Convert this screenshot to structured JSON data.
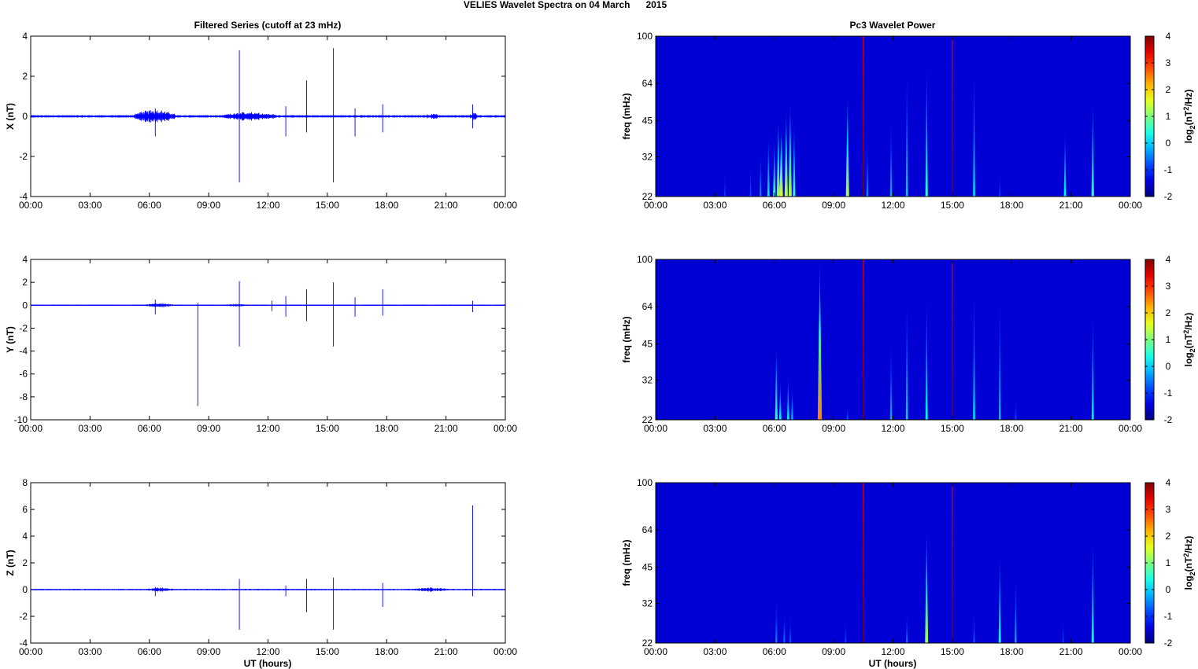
{
  "figure": {
    "title": "VELIES Wavelet Spectra on 04 March      2015",
    "left_title": "Filtered Series (cutoff at 23 mHz)",
    "right_title": "Pc3 Wavelet Power",
    "x_label": "UT (hours)"
  },
  "colors": {
    "trace": "#0000ff",
    "spectrogram_background": "#00008f"
  },
  "colorbar": {
    "label": "log2(nT2/Hz)",
    "label_parts": [
      "log",
      "2",
      "(nT",
      "2",
      "/Hz)"
    ],
    "range": [
      -2,
      4
    ],
    "ticks": [
      "4",
      "3",
      "2",
      "1",
      "0",
      "-1",
      "-2"
    ]
  },
  "chart_data": [
    {
      "type": "line",
      "component": "X",
      "ylabel": "X (nT)",
      "xlabel": "",
      "x_ticks": [
        "00:00",
        "03:00",
        "06:00",
        "09:00",
        "12:00",
        "15:00",
        "18:00",
        "21:00",
        "00:00"
      ],
      "xlim_hours": [
        0,
        24
      ],
      "ylim": [
        -4,
        4
      ],
      "y_ticks": [
        "4",
        "2",
        "0",
        "-2",
        "-4"
      ],
      "baseline_noise_nT": 0.06,
      "noise_bursts": [
        {
          "start_h": 5.2,
          "end_h": 7.3,
          "amp_nT": 0.45
        },
        {
          "start_h": 9.8,
          "end_h": 12.4,
          "amp_nT": 0.3
        },
        {
          "start_h": 19.7,
          "end_h": 21.0,
          "amp_nT": 0.15
        },
        {
          "start_h": 22.2,
          "end_h": 22.6,
          "amp_nT": 0.25
        }
      ],
      "spikes": [
        {
          "t_h": 6.3,
          "max": 0.4,
          "min": -1.0
        },
        {
          "t_h": 10.55,
          "max": 3.3,
          "min": -3.3
        },
        {
          "t_h": 12.9,
          "max": 0.5,
          "min": -1.0
        },
        {
          "t_h": 13.95,
          "max": 1.8,
          "min": -0.8
        },
        {
          "t_h": 15.3,
          "max": 3.4,
          "min": -3.3
        },
        {
          "t_h": 16.4,
          "max": 0.4,
          "min": -1.0
        },
        {
          "t_h": 17.8,
          "max": 0.6,
          "min": -0.8
        },
        {
          "t_h": 22.35,
          "max": 0.6,
          "min": -0.6
        }
      ]
    },
    {
      "type": "line",
      "component": "Y",
      "ylabel": "Y (nT)",
      "xlabel": "",
      "x_ticks": [
        "00:00",
        "03:00",
        "06:00",
        "09:00",
        "12:00",
        "15:00",
        "18:00",
        "21:00",
        "00:00"
      ],
      "xlim_hours": [
        0,
        24
      ],
      "ylim": [
        -10,
        4
      ],
      "y_ticks": [
        "4",
        "2",
        "0",
        "-2",
        "-4",
        "-6",
        "-8",
        "-10"
      ],
      "baseline_noise_nT": 0.05,
      "noise_bursts": [
        {
          "start_h": 5.8,
          "end_h": 7.2,
          "amp_nT": 0.25
        },
        {
          "start_h": 9.8,
          "end_h": 11.0,
          "amp_nT": 0.15
        }
      ],
      "spikes": [
        {
          "t_h": 6.3,
          "max": 0.5,
          "min": -0.8
        },
        {
          "t_h": 8.45,
          "max": 0.2,
          "min": -8.8
        },
        {
          "t_h": 10.55,
          "max": 2.1,
          "min": -3.6
        },
        {
          "t_h": 12.2,
          "max": 0.4,
          "min": -0.5
        },
        {
          "t_h": 12.9,
          "max": 0.8,
          "min": -1.0
        },
        {
          "t_h": 13.95,
          "max": 1.4,
          "min": -1.4
        },
        {
          "t_h": 15.3,
          "max": 2.0,
          "min": -3.6
        },
        {
          "t_h": 16.4,
          "max": 0.7,
          "min": -1.0
        },
        {
          "t_h": 17.8,
          "max": 1.4,
          "min": -0.9
        },
        {
          "t_h": 22.35,
          "max": 0.4,
          "min": -0.6
        }
      ]
    },
    {
      "type": "line",
      "component": "Z",
      "ylabel": "Z (nT)",
      "xlabel": "UT (hours)",
      "x_ticks": [
        "00:00",
        "03:00",
        "06:00",
        "09:00",
        "12:00",
        "15:00",
        "18:00",
        "21:00",
        "00:00"
      ],
      "xlim_hours": [
        0,
        24
      ],
      "ylim": [
        -4,
        8
      ],
      "y_ticks": [
        "8",
        "6",
        "4",
        "2",
        "0",
        "-2",
        "-4"
      ],
      "baseline_noise_nT": 0.05,
      "noise_bursts": [
        {
          "start_h": 5.8,
          "end_h": 7.2,
          "amp_nT": 0.2
        },
        {
          "start_h": 19.3,
          "end_h": 21.2,
          "amp_nT": 0.2
        }
      ],
      "spikes": [
        {
          "t_h": 6.3,
          "max": 0.2,
          "min": -0.5
        },
        {
          "t_h": 10.55,
          "max": 0.8,
          "min": -3.0
        },
        {
          "t_h": 12.9,
          "max": 0.3,
          "min": -0.5
        },
        {
          "t_h": 13.95,
          "max": 0.8,
          "min": -1.7
        },
        {
          "t_h": 15.3,
          "max": 0.9,
          "min": -3.0
        },
        {
          "t_h": 17.8,
          "max": 0.5,
          "min": -1.3
        },
        {
          "t_h": 22.35,
          "max": 6.3,
          "min": -0.5
        }
      ]
    },
    {
      "type": "heatmap",
      "component": "X",
      "ylabel": "freq (mHz)",
      "xlabel": "",
      "x_ticks": [
        "00:00",
        "03:00",
        "06:00",
        "09:00",
        "12:00",
        "15:00",
        "18:00",
        "21:00",
        "00:00"
      ],
      "xlim_hours": [
        0,
        24
      ],
      "ylim_mHz": [
        22,
        100
      ],
      "y_scale": "log",
      "y_ticks": [
        "100",
        "64",
        "45",
        "32",
        "22"
      ],
      "y_tick_values": [
        100,
        64,
        45,
        32,
        22
      ],
      "clim": [
        -2,
        4
      ],
      "background_level": -1.5,
      "features": [
        {
          "t_h": 3.5,
          "top_mHz": 28,
          "peak": -0.8
        },
        {
          "t_h": 4.8,
          "top_mHz": 30,
          "peak": -0.7
        },
        {
          "t_h": 5.3,
          "top_mHz": 35,
          "peak": -0.4
        },
        {
          "t_h": 5.7,
          "top_mHz": 40,
          "peak": 0.2
        },
        {
          "t_h": 6.0,
          "top_mHz": 38,
          "peak": 0.6
        },
        {
          "t_h": 6.2,
          "top_mHz": 46,
          "peak": 1.2
        },
        {
          "t_h": 6.35,
          "top_mHz": 42,
          "peak": 1.6
        },
        {
          "t_h": 6.6,
          "top_mHz": 50,
          "peak": 1.4
        },
        {
          "t_h": 6.8,
          "top_mHz": 55,
          "peak": 1.3
        },
        {
          "t_h": 7.0,
          "top_mHz": 45,
          "peak": 0.6
        },
        {
          "t_h": 9.7,
          "top_mHz": 58,
          "peak": 1.3
        },
        {
          "t_h": 10.5,
          "top_mHz": 100,
          "peak": 4.0
        },
        {
          "t_h": 10.7,
          "top_mHz": 38,
          "peak": -0.3
        },
        {
          "t_h": 11.9,
          "top_mHz": 48,
          "peak": -0.2
        },
        {
          "t_h": 12.7,
          "top_mHz": 76,
          "peak": 0.0
        },
        {
          "t_h": 13.7,
          "top_mHz": 80,
          "peak": 0.5
        },
        {
          "t_h": 15.0,
          "top_mHz": 100,
          "peak": 4.0
        },
        {
          "t_h": 16.1,
          "top_mHz": 76,
          "peak": 0.1
        },
        {
          "t_h": 17.4,
          "top_mHz": 28,
          "peak": -0.8
        },
        {
          "t_h": 20.7,
          "top_mHz": 42,
          "peak": 0.3
        },
        {
          "t_h": 22.1,
          "top_mHz": 55,
          "peak": 0.6
        }
      ]
    },
    {
      "type": "heatmap",
      "component": "Y",
      "ylabel": "freq (mHz)",
      "xlabel": "",
      "x_ticks": [
        "00:00",
        "03:00",
        "06:00",
        "09:00",
        "12:00",
        "15:00",
        "18:00",
        "21:00",
        "00:00"
      ],
      "xlim_hours": [
        0,
        24
      ],
      "ylim_mHz": [
        22,
        100
      ],
      "y_scale": "log",
      "y_ticks": [
        "100",
        "64",
        "45",
        "32",
        "22"
      ],
      "y_tick_values": [
        100,
        64,
        45,
        32,
        22
      ],
      "clim": [
        -2,
        4
      ],
      "background_level": -1.5,
      "features": [
        {
          "t_h": 6.1,
          "top_mHz": 45,
          "peak": 0.6
        },
        {
          "t_h": 6.3,
          "top_mHz": 32,
          "peak": 0.3
        },
        {
          "t_h": 6.7,
          "top_mHz": 34,
          "peak": 0.2
        },
        {
          "t_h": 6.9,
          "top_mHz": 30,
          "peak": -0.1
        },
        {
          "t_h": 8.3,
          "top_mHz": 100,
          "peak": 2.5
        },
        {
          "t_h": 9.7,
          "top_mHz": 25,
          "peak": -0.6
        },
        {
          "t_h": 10.5,
          "top_mHz": 100,
          "peak": 4.0
        },
        {
          "t_h": 11.9,
          "top_mHz": 48,
          "peak": -0.2
        },
        {
          "t_h": 12.7,
          "top_mHz": 72,
          "peak": 0.0
        },
        {
          "t_h": 13.7,
          "top_mHz": 74,
          "peak": 0.3
        },
        {
          "t_h": 15.0,
          "top_mHz": 100,
          "peak": 4.0
        },
        {
          "t_h": 16.1,
          "top_mHz": 78,
          "peak": 0.1
        },
        {
          "t_h": 17.4,
          "top_mHz": 72,
          "peak": -0.1
        },
        {
          "t_h": 18.2,
          "top_mHz": 28,
          "peak": -0.8
        },
        {
          "t_h": 22.1,
          "top_mHz": 62,
          "peak": 0.2
        }
      ]
    },
    {
      "type": "heatmap",
      "component": "Z",
      "ylabel": "freq (mHz)",
      "xlabel": "UT (hours)",
      "x_ticks": [
        "00:00",
        "03:00",
        "06:00",
        "09:00",
        "12:00",
        "15:00",
        "18:00",
        "21:00",
        "00:00"
      ],
      "xlim_hours": [
        0,
        24
      ],
      "ylim_mHz": [
        22,
        100
      ],
      "y_scale": "log",
      "y_ticks": [
        "100",
        "64",
        "45",
        "32",
        "22"
      ],
      "y_tick_values": [
        100,
        64,
        45,
        32,
        22
      ],
      "clim": [
        -2,
        4
      ],
      "background_level": -1.5,
      "features": [
        {
          "t_h": 6.1,
          "top_mHz": 34,
          "peak": -0.4
        },
        {
          "t_h": 6.5,
          "top_mHz": 30,
          "peak": -0.5
        },
        {
          "t_h": 6.8,
          "top_mHz": 29,
          "peak": -0.6
        },
        {
          "t_h": 9.6,
          "top_mHz": 28,
          "peak": -0.8
        },
        {
          "t_h": 10.5,
          "top_mHz": 100,
          "peak": 4.0
        },
        {
          "t_h": 12.7,
          "top_mHz": 30,
          "peak": -0.5
        },
        {
          "t_h": 13.7,
          "top_mHz": 66,
          "peak": 1.2
        },
        {
          "t_h": 15.0,
          "top_mHz": 100,
          "peak": 4.0
        },
        {
          "t_h": 16.1,
          "top_mHz": 30,
          "peak": -0.6
        },
        {
          "t_h": 17.4,
          "top_mHz": 52,
          "peak": 0.4
        },
        {
          "t_h": 18.2,
          "top_mHz": 42,
          "peak": -0.2
        },
        {
          "t_h": 20.6,
          "top_mHz": 28,
          "peak": -0.8
        },
        {
          "t_h": 22.1,
          "top_mHz": 60,
          "peak": 0.4
        }
      ]
    }
  ]
}
